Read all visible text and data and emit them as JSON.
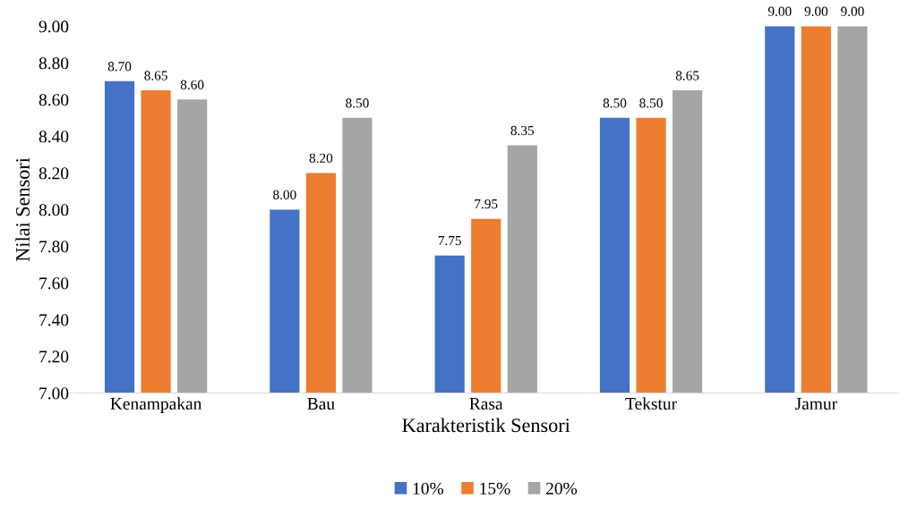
{
  "chart_data": {
    "type": "bar",
    "xlabel": "Karakteristik Sensori",
    "ylabel": "Nilai Sensori",
    "categories": [
      "Kenampakan",
      "Bau",
      "Rasa",
      "Tekstur",
      "Jamur"
    ],
    "series": [
      {
        "name": "10%",
        "color": "#4472c4",
        "values": [
          8.7,
          8.0,
          7.75,
          8.5,
          9.0
        ],
        "value_labels": [
          "8.70",
          "8.00",
          "7.75",
          "8.50",
          "9.00"
        ]
      },
      {
        "name": "15%",
        "color": "#ed7d31",
        "values": [
          8.65,
          8.2,
          7.95,
          8.5,
          9.0
        ],
        "value_labels": [
          "8.65",
          "8.20",
          "7.95",
          "8.50",
          "9.00"
        ]
      },
      {
        "name": "20%",
        "color": "#a5a5a5",
        "values": [
          8.6,
          8.5,
          8.35,
          8.65,
          9.0
        ],
        "value_labels": [
          "8.60",
          "8.50",
          "8.35",
          "8.65",
          "9.00"
        ]
      }
    ],
    "ylim": [
      7.0,
      9.0
    ],
    "yticks": [
      {
        "value": 7.0,
        "label": "7.00"
      },
      {
        "value": 7.2,
        "label": "7.20"
      },
      {
        "value": 7.4,
        "label": "7.40"
      },
      {
        "value": 7.6,
        "label": "7.60"
      },
      {
        "value": 7.8,
        "label": "7.80"
      },
      {
        "value": 8.0,
        "label": "8.00"
      },
      {
        "value": 8.2,
        "label": "8.20"
      },
      {
        "value": 8.4,
        "label": "8.40"
      },
      {
        "value": 8.6,
        "label": "8.60"
      },
      {
        "value": 8.8,
        "label": "8.80"
      },
      {
        "value": 9.0,
        "label": "9.00"
      }
    ],
    "grid": false,
    "legend": "bottom"
  }
}
